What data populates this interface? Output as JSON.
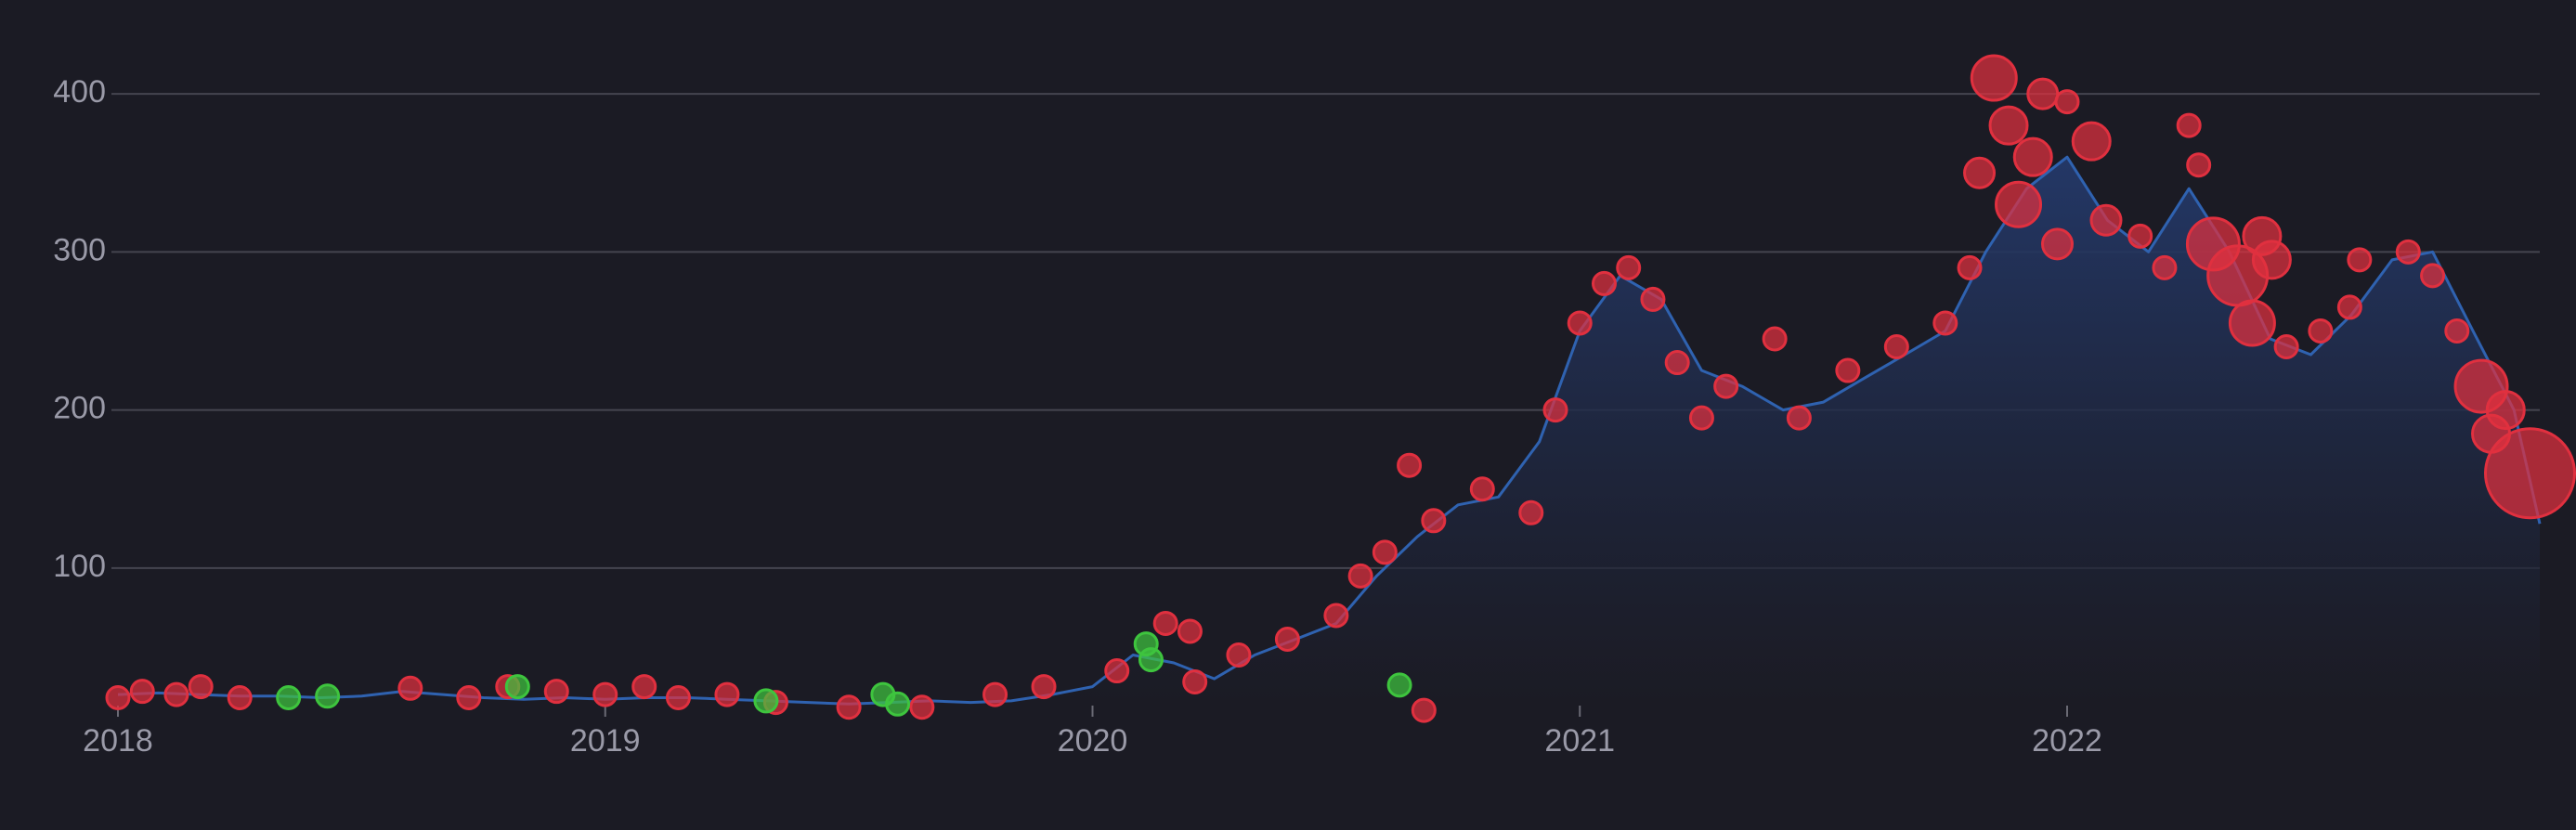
{
  "chart_data": {
    "type": "area",
    "xlim": [
      2018,
      2022.97
    ],
    "xticks": [
      2018,
      2019,
      2020,
      2021,
      2022
    ],
    "ylim": [
      13,
      430
    ],
    "yticks": [
      100,
      200,
      300,
      400
    ],
    "grid": true,
    "series": [
      {
        "type": "area",
        "color": "#2f62b0",
        "x": [
          2018,
          2018.083,
          2018.167,
          2018.25,
          2018.333,
          2018.417,
          2018.5,
          2018.583,
          2018.667,
          2018.75,
          2018.833,
          2018.917,
          2019,
          2019.083,
          2019.167,
          2019.25,
          2019.333,
          2019.417,
          2019.5,
          2019.583,
          2019.667,
          2019.75,
          2019.833,
          2019.917,
          2020,
          2020.083,
          2020.167,
          2020.25,
          2020.333,
          2020.417,
          2020.5,
          2020.583,
          2020.667,
          2020.75,
          2020.833,
          2020.917,
          2021,
          2021.083,
          2021.167,
          2021.25,
          2021.333,
          2021.417,
          2021.5,
          2021.583,
          2021.667,
          2021.75,
          2021.833,
          2021.917,
          2022,
          2022.083,
          2022.167,
          2022.25,
          2022.333,
          2022.417,
          2022.5,
          2022.583,
          2022.667,
          2022.75,
          2022.833,
          2022.917,
          2022.97
        ],
        "values": [
          20,
          21,
          20,
          19,
          19,
          18,
          19,
          22,
          20,
          18,
          17,
          18,
          17,
          18,
          18,
          17,
          16,
          15,
          14,
          15,
          16,
          15,
          16,
          20,
          25,
          45,
          40,
          30,
          45,
          55,
          65,
          95,
          120,
          140,
          145,
          180,
          250,
          285,
          270,
          225,
          215,
          200,
          205,
          220,
          235,
          250,
          300,
          340,
          360,
          320,
          300,
          340,
          300,
          245,
          235,
          260,
          295,
          300,
          250,
          200,
          128
        ]
      },
      {
        "type": "bubble",
        "color": "#e0303f",
        "x": [
          2018,
          2018.05,
          2018.12,
          2018.17,
          2018.25,
          2018.6,
          2018.72,
          2018.8,
          2018.9,
          2019,
          2019.08,
          2019.15,
          2019.25,
          2019.35,
          2019.5,
          2019.65,
          2019.8,
          2019.9,
          2020.05,
          2020.15,
          2020.2,
          2020.21,
          2020.3,
          2020.4,
          2020.5,
          2020.55,
          2020.6,
          2020.65,
          2020.68,
          2020.7,
          2020.8,
          2020.9,
          2020.95,
          2021,
          2021.05,
          2021.1,
          2021.15,
          2021.2,
          2021.25,
          2021.3,
          2021.4,
          2021.45,
          2021.55,
          2021.65,
          2021.75,
          2021.8,
          2021.82,
          2021.85,
          2021.88,
          2021.9,
          2021.93,
          2021.95,
          2021.98,
          2022,
          2022.05,
          2022.08,
          2022.15,
          2022.2,
          2022.25,
          2022.27,
          2022.3,
          2022.35,
          2022.38,
          2022.4,
          2022.42,
          2022.45,
          2022.52,
          2022.58,
          2022.6,
          2022.7,
          2022.75,
          2022.8,
          2022.85,
          2022.87,
          2022.9,
          2022.95
        ],
        "values": [
          18,
          22,
          20,
          25,
          18,
          24,
          18,
          25,
          22,
          20,
          25,
          18,
          20,
          15,
          12,
          12,
          20,
          25,
          35,
          65,
          60,
          28,
          45,
          55,
          70,
          95,
          110,
          165,
          10,
          130,
          150,
          135,
          200,
          255,
          280,
          290,
          270,
          230,
          195,
          215,
          245,
          195,
          225,
          240,
          255,
          290,
          350,
          410,
          380,
          330,
          360,
          400,
          305,
          395,
          370,
          320,
          310,
          290,
          380,
          355,
          305,
          285,
          255,
          310,
          295,
          240,
          250,
          265,
          295,
          300,
          285,
          250,
          215,
          185,
          200,
          160
        ],
        "sizes": [
          3,
          3,
          3,
          3,
          3,
          3,
          3,
          3,
          3,
          3,
          3,
          3,
          3,
          3,
          3,
          3,
          3,
          3,
          3,
          3,
          3,
          3,
          3,
          3,
          3,
          3,
          3,
          3,
          3,
          3,
          3,
          3,
          3,
          3,
          3,
          3,
          3,
          3,
          3,
          3,
          3,
          3,
          3,
          3,
          3,
          3,
          4,
          6,
          5,
          6,
          5,
          4,
          4,
          3,
          5,
          4,
          3,
          3,
          3,
          3,
          7,
          8,
          6,
          5,
          5,
          3,
          3,
          3,
          3,
          3,
          3,
          3,
          7,
          5,
          5,
          12
        ]
      },
      {
        "type": "bubble",
        "color": "#3ec43e",
        "x": [
          2018.35,
          2018.43,
          2018.82,
          2019.33,
          2019.57,
          2019.6,
          2020.11,
          2020.12,
          2020.63
        ],
        "values": [
          18,
          19,
          25,
          16,
          20,
          14,
          52,
          42,
          26
        ],
        "sizes": [
          3,
          3,
          3,
          3,
          3,
          3,
          3,
          3,
          3
        ]
      }
    ]
  }
}
